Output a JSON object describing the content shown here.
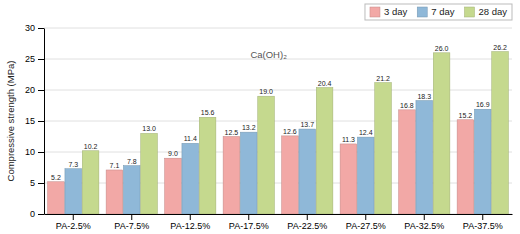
{
  "chart_data": {
    "type": "bar",
    "ylabel": "Compressive strength (MPa)",
    "annotation": "Ca(OH)₂",
    "categories": [
      "PA-2.5%",
      "PA-7.5%",
      "PA-12.5%",
      "PA-17.5%",
      "PA-22.5%",
      "PA-27.5%",
      "PA-32.5%",
      "PA-37.5%"
    ],
    "series": [
      {
        "name": "3 day",
        "color": "#f2a8a6",
        "values": [
          5.2,
          7.1,
          9.0,
          12.5,
          12.6,
          11.3,
          16.8,
          15.2
        ],
        "value_labels": [
          "5.2",
          "7.1",
          "9.0",
          "12.5",
          "12.6",
          "11.3",
          "16.8",
          "15.2"
        ]
      },
      {
        "name": "7 day",
        "color": "#8fb8d8",
        "values": [
          7.3,
          7.8,
          11.4,
          13.2,
          13.7,
          12.4,
          18.3,
          16.9
        ],
        "value_labels": [
          "7.3",
          "7.8",
          "11.4",
          "13.2",
          "13.7",
          "12.4",
          "18.3",
          "16.9"
        ]
      },
      {
        "name": "28 day",
        "color": "#c5d98e",
        "values": [
          10.2,
          13.0,
          15.6,
          19.0,
          20.4,
          21.2,
          26.0,
          26.2
        ],
        "value_labels": [
          "10.2",
          "13.0",
          "15.6",
          "19.0",
          "20.4",
          "21.2",
          "26.0",
          "26.2"
        ]
      }
    ],
    "ylim": [
      0,
      30
    ],
    "yticks": [
      0,
      5,
      10,
      15,
      20,
      25,
      30
    ],
    "grid": true,
    "legend": "upper right",
    "data_labels": true
  }
}
